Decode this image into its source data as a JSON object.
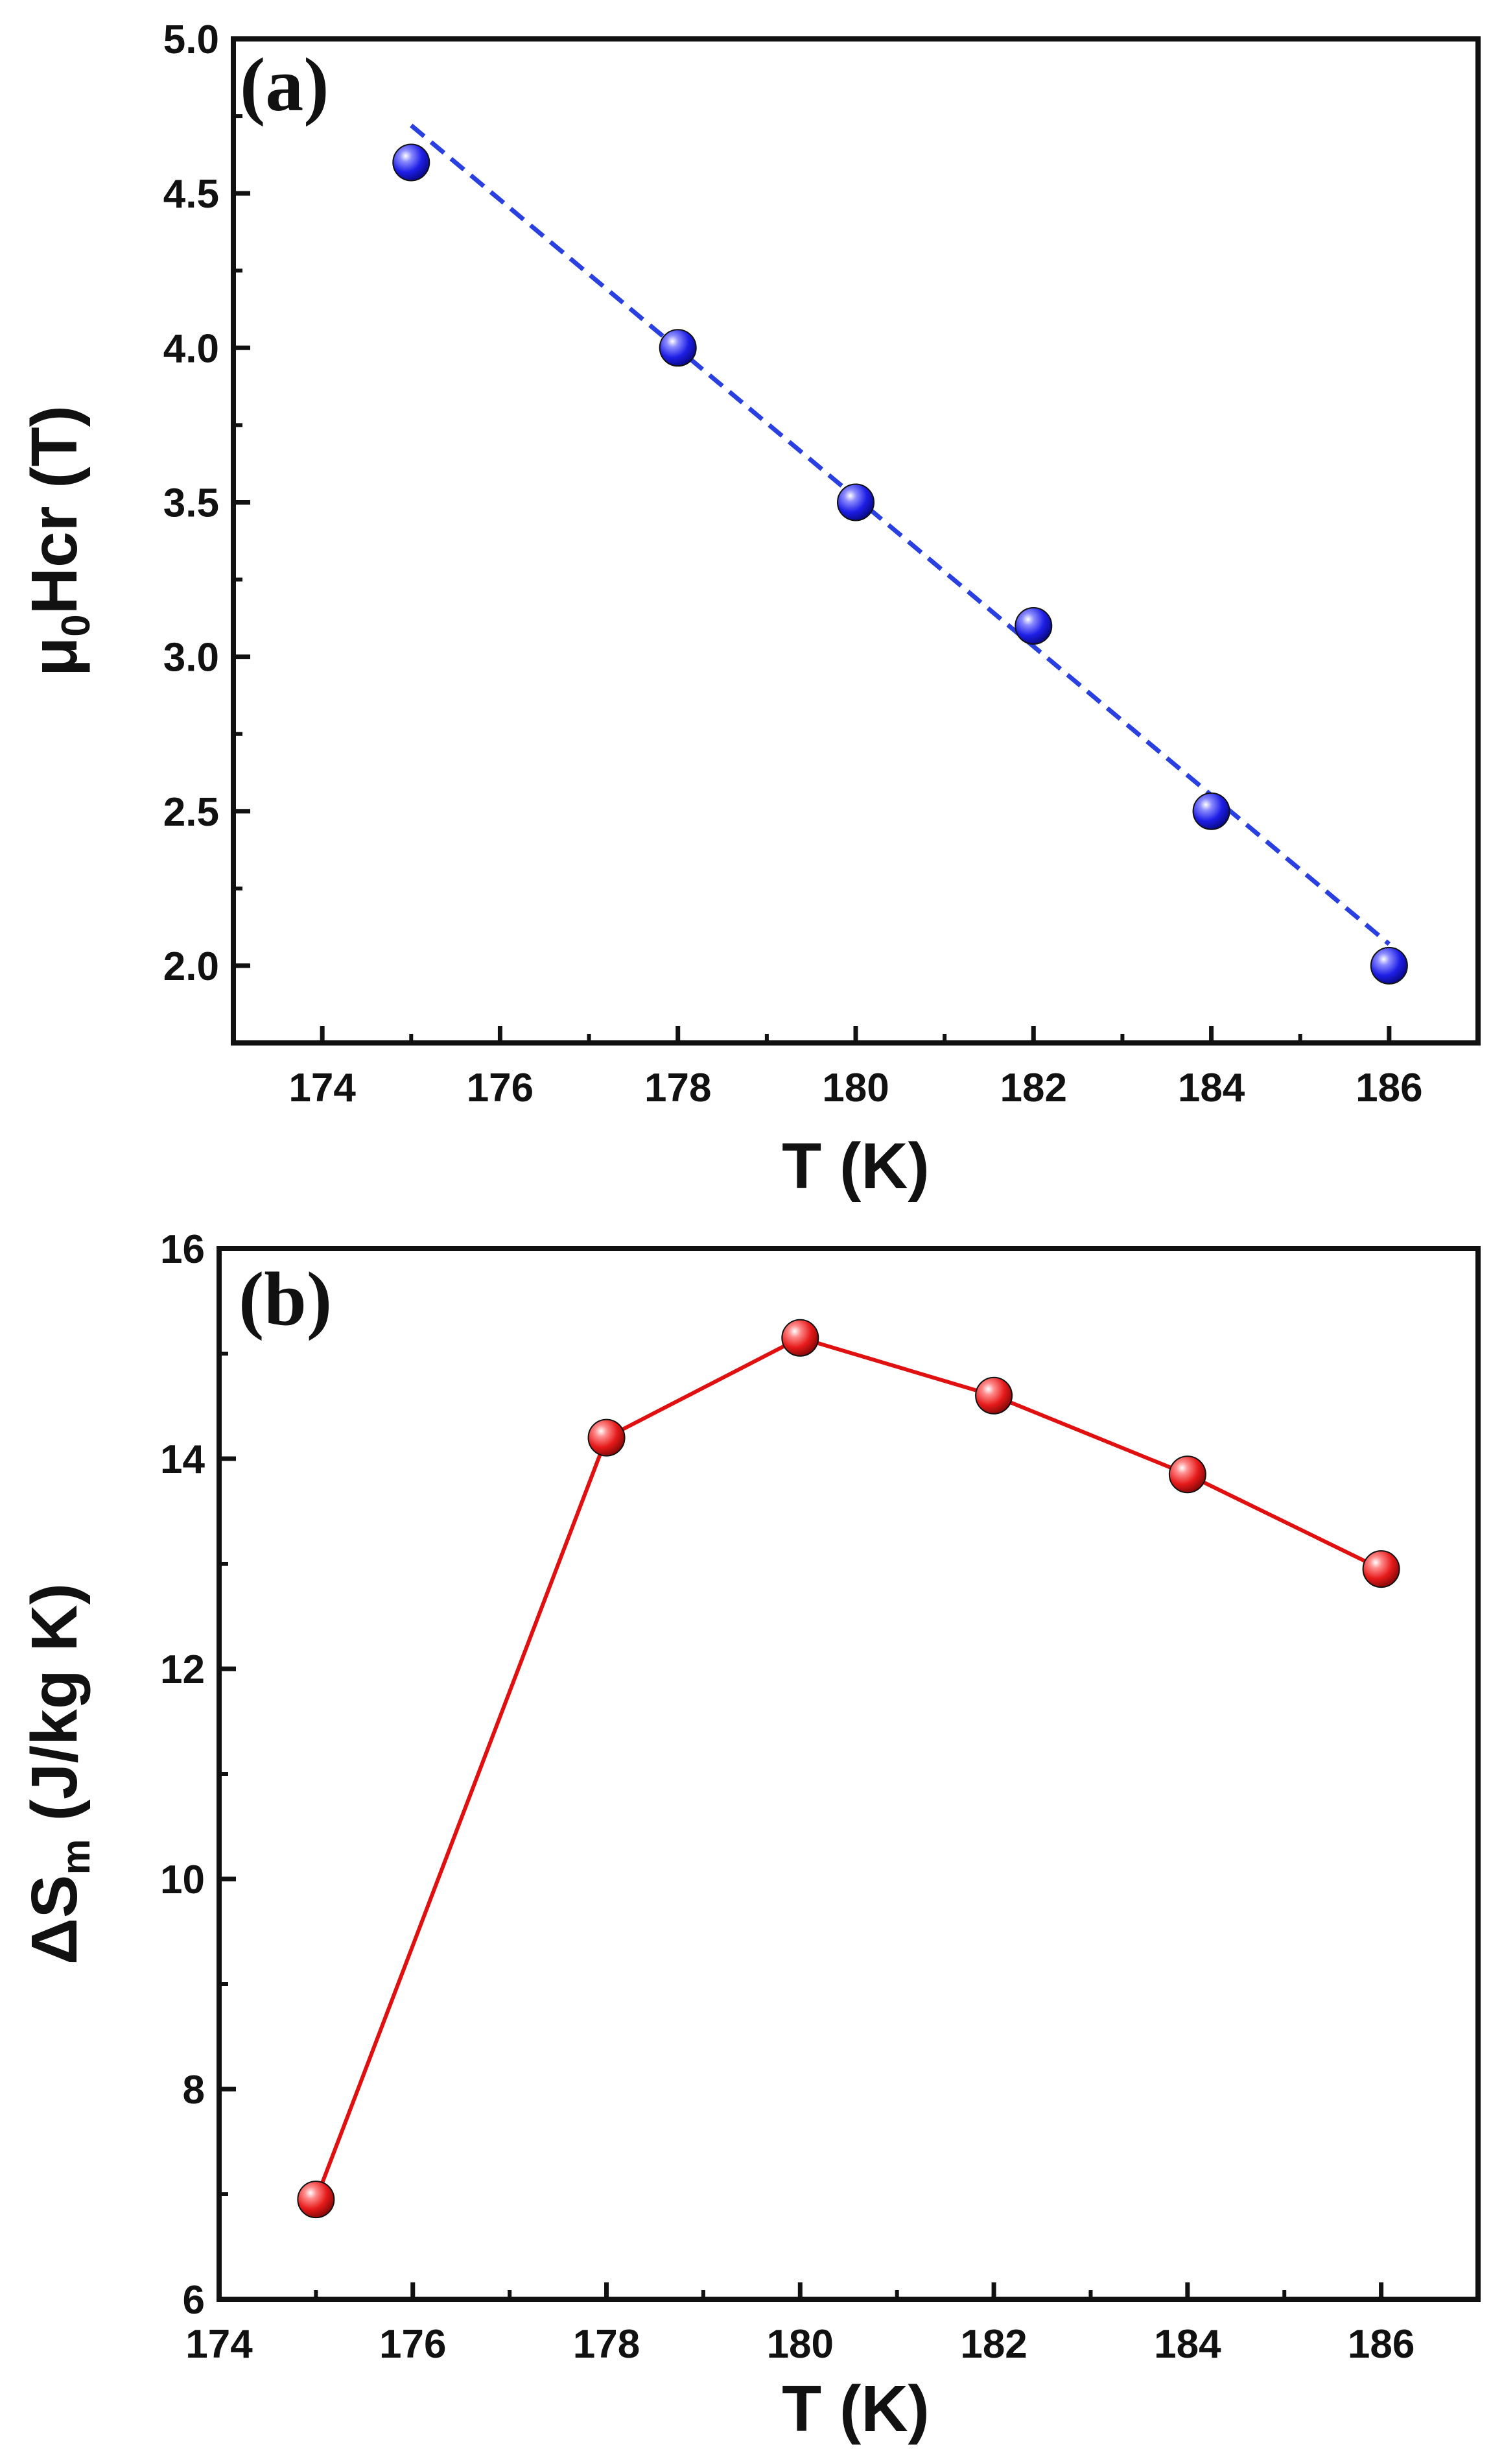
{
  "chart_data": [
    {
      "type": "scatter",
      "panel_label": "(a)",
      "xlabel": "T (K)",
      "ylabel": {
        "pre": "μ",
        "sub": "0",
        "post": "Hcr (T)"
      },
      "xlim": [
        173,
        187
      ],
      "ylim": [
        1.75,
        5.0
      ],
      "xticks": [
        174,
        176,
        178,
        180,
        182,
        184,
        186
      ],
      "xtick_labels": [
        "174",
        "176",
        "178",
        "180",
        "182",
        "184",
        "186"
      ],
      "yticks": [
        2.0,
        2.5,
        3.0,
        3.5,
        4.0,
        4.5,
        5.0
      ],
      "ytick_labels": [
        "2.0",
        "2.5",
        "3.0",
        "3.5",
        "4.0",
        "4.5",
        "5.0"
      ],
      "series": [
        {
          "name": "μ0Hcr",
          "color": "#1f1fe0",
          "x": [
            175,
            178,
            180,
            182,
            184,
            186
          ],
          "y": [
            4.6,
            4.0,
            3.5,
            3.1,
            2.5,
            2.0
          ]
        }
      ],
      "fit_line": {
        "color": "#2a3fe0",
        "x": [
          175,
          186
        ],
        "y": [
          4.72,
          2.07
        ]
      }
    },
    {
      "type": "line",
      "panel_label": "(b)",
      "xlabel": "T (K)",
      "ylabel": {
        "pre": "ΔS",
        "sub": "m",
        "post": " (J/kg K)"
      },
      "xlim": [
        174,
        187
      ],
      "ylim": [
        6,
        16
      ],
      "xticks": [
        174,
        176,
        178,
        180,
        182,
        184,
        186
      ],
      "xtick_labels": [
        "174",
        "176",
        "178",
        "180",
        "182",
        "184",
        "186"
      ],
      "yticks": [
        6,
        8,
        10,
        12,
        14,
        16
      ],
      "ytick_labels": [
        "6",
        "8",
        "10",
        "12",
        "14",
        "16"
      ],
      "series": [
        {
          "name": "ΔSm",
          "color": "#e01010",
          "x": [
            175,
            178,
            180,
            182,
            184,
            186
          ],
          "y": [
            6.95,
            14.2,
            15.15,
            14.6,
            13.85,
            12.95
          ]
        }
      ]
    }
  ]
}
